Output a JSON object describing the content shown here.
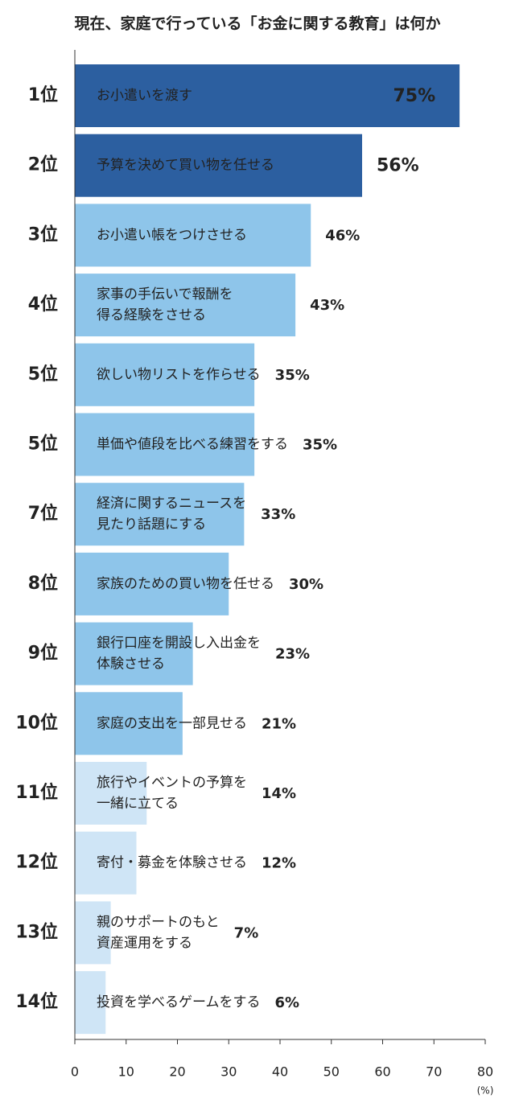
{
  "chart_data": {
    "type": "bar",
    "orientation": "horizontal",
    "title": "現在、家庭で行っている「お金に関する教育」は何か",
    "categories": [
      "1位",
      "2位",
      "3位",
      "4位",
      "5位",
      "5位",
      "7位",
      "8位",
      "9位",
      "10位",
      "11位",
      "12位",
      "13位",
      "14位"
    ],
    "labels": [
      [
        "お小遣いを渡す"
      ],
      [
        "予算を決めて買い物を任せる"
      ],
      [
        "お小遣い帳をつけさせる"
      ],
      [
        "家事の手伝いで報酬を",
        "得る経験をさせる"
      ],
      [
        "欲しい物リストを作らせる"
      ],
      [
        "単価や値段を比べる練習をする"
      ],
      [
        "経済に関するニュースを",
        "見たり話題にする"
      ],
      [
        "家族のための買い物を任せる"
      ],
      [
        "銀行口座を開設し入出金を",
        "体験させる"
      ],
      [
        "家庭の支出を一部見せる"
      ],
      [
        "旅行やイベントの予算を",
        "一緒に立てる"
      ],
      [
        "寄付・募金を体験させる"
      ],
      [
        "親のサポートのもと",
        "資産運用をする"
      ],
      [
        "投資を学べるゲームをする"
      ]
    ],
    "values": [
      75,
      56,
      46,
      43,
      35,
      35,
      33,
      30,
      23,
      21,
      14,
      12,
      7,
      6
    ],
    "value_labels": [
      "75%",
      "56%",
      "46%",
      "43%",
      "35%",
      "35%",
      "33%",
      "30%",
      "23%",
      "21%",
      "14%",
      "12%",
      "7%",
      "6%"
    ],
    "colors": [
      "#2c5fa0",
      "#2c5fa0",
      "#8ec5ea",
      "#8ec5ea",
      "#8ec5ea",
      "#8ec5ea",
      "#8ec5ea",
      "#8ec5ea",
      "#8ec5ea",
      "#8ec5ea",
      "#cfe5f6",
      "#cfe5f6",
      "#cfe5f6",
      "#cfe5f6"
    ],
    "xlim": [
      0,
      80
    ],
    "xticks": [
      0,
      10,
      20,
      30,
      40,
      50,
      60,
      70,
      80
    ],
    "x_unit": "(%)"
  }
}
